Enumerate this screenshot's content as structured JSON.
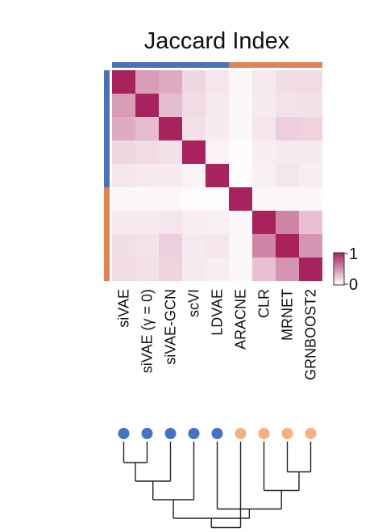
{
  "chart_data": {
    "type": "heatmap",
    "title": "Jaccard Index",
    "labels": [
      "siVAE",
      "siVAE (γ = 0)",
      "siVAE-GCN",
      "scVI",
      "LDVAE",
      "ARACNE",
      "CLR",
      "MRNET",
      "GRNBOOST2"
    ],
    "groups": [
      "blue",
      "blue",
      "blue",
      "blue",
      "blue",
      "orange",
      "orange",
      "orange",
      "orange"
    ],
    "group_colors": {
      "blue": "#4a72b8",
      "orange": "#dd8452",
      "blue_dot": "#4472c4",
      "orange_dot": "#f4b183"
    },
    "values": [
      [
        1.0,
        0.45,
        0.38,
        0.18,
        0.12,
        0.03,
        0.1,
        0.15,
        0.16
      ],
      [
        0.45,
        1.0,
        0.3,
        0.16,
        0.1,
        0.03,
        0.09,
        0.13,
        0.14
      ],
      [
        0.38,
        0.3,
        1.0,
        0.14,
        0.09,
        0.03,
        0.12,
        0.22,
        0.2
      ],
      [
        0.18,
        0.16,
        0.14,
        1.0,
        0.06,
        0.02,
        0.08,
        0.1,
        0.1
      ],
      [
        0.12,
        0.1,
        0.09,
        0.06,
        1.0,
        0.02,
        0.07,
        0.12,
        0.08
      ],
      [
        0.03,
        0.03,
        0.03,
        0.02,
        0.02,
        1.0,
        0.03,
        0.03,
        0.03
      ],
      [
        0.1,
        0.09,
        0.12,
        0.08,
        0.07,
        0.03,
        1.0,
        0.55,
        0.28
      ],
      [
        0.15,
        0.13,
        0.22,
        0.1,
        0.12,
        0.03,
        0.55,
        1.0,
        0.48
      ],
      [
        0.16,
        0.14,
        0.2,
        0.1,
        0.08,
        0.03,
        0.28,
        0.48,
        1.0
      ]
    ],
    "colorbar": {
      "min_label": "0",
      "max_label": "1",
      "min": 0,
      "max": 1,
      "low_color": "#ffffff",
      "high_color": "#a8235e"
    },
    "dendrogram": {
      "merges": [
        [
          0,
          1
        ],
        [
          7,
          8
        ],
        [
          9,
          2
        ],
        [
          6,
          10
        ],
        [
          11,
          3
        ],
        [
          12,
          4
        ],
        [
          13,
          14
        ],
        [
          5,
          15
        ]
      ]
    }
  }
}
